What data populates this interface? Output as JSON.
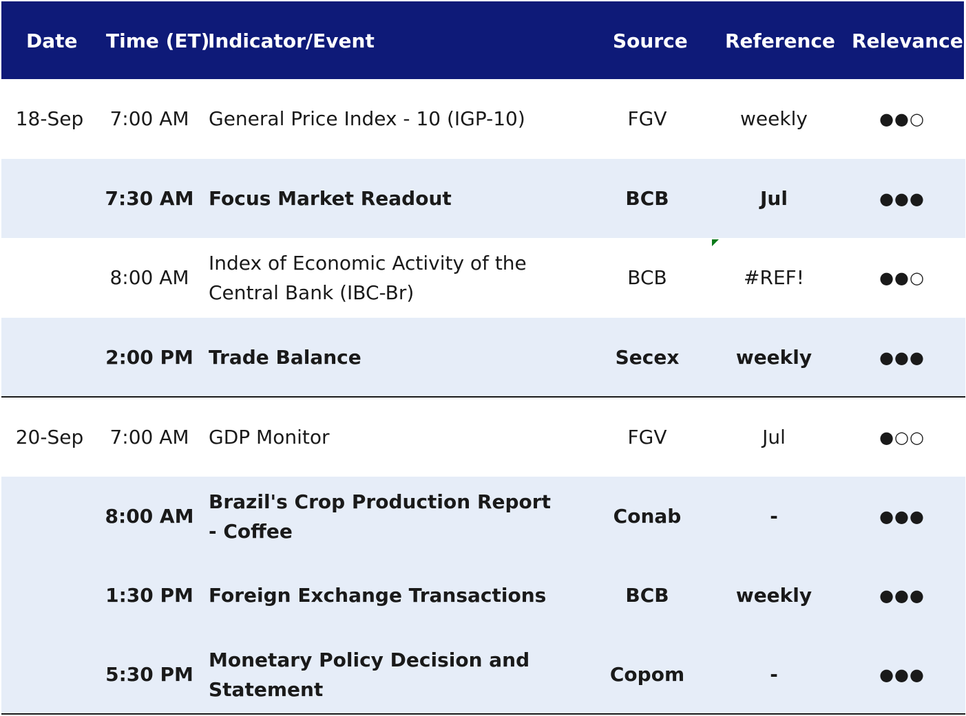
{
  "colors": {
    "header_bg": "#0e1a78",
    "header_text": "#ffffff",
    "shade_row": "#e6edf8",
    "comment_marker": "#0a7a1a"
  },
  "header": {
    "date": "Date",
    "time": "Time (ET)",
    "event": "Indicator/Event",
    "source": "Source",
    "reference": "Reference",
    "relevance": "Relevance"
  },
  "rows": [
    {
      "date": "18-Sep",
      "time": "7:00 AM",
      "event": "General Price Index - 10 (IGP-10)",
      "source": "FGV",
      "reference": "weekly",
      "relevance": "●●○",
      "bold": false
    },
    {
      "date": "",
      "time": "7:30 AM",
      "event": "Focus Market Readout",
      "source": "BCB",
      "reference": "Jul",
      "relevance": "●●●",
      "bold": true
    },
    {
      "date": "",
      "time": "8:00 AM",
      "event": "Index of Economic Activity of the Central Bank (IBC-Br)",
      "source": "BCB",
      "reference": "#REF!",
      "relevance": "●●○",
      "bold": false
    },
    {
      "date": "",
      "time": "2:00 PM",
      "event": "Trade Balance",
      "source": "Secex",
      "reference": "weekly",
      "relevance": "●●●",
      "bold": true
    },
    {
      "date": "20-Sep",
      "time": "7:00 AM",
      "event": "GDP Monitor",
      "source": "FGV",
      "reference": "Jul",
      "relevance": "●○○",
      "bold": false
    },
    {
      "date": "",
      "time": "8:00 AM",
      "event": "Brazil's Crop Production Report - Coffee",
      "source": "Conab",
      "reference": "-",
      "relevance": "●●●",
      "bold": true
    },
    {
      "date": "",
      "time": "1:30 PM",
      "event": "Foreign Exchange Transactions",
      "source": "BCB",
      "reference": "weekly",
      "relevance": "●●●",
      "bold": true
    },
    {
      "date": "",
      "time": "5:30 PM",
      "event": "Monetary Policy Decision and Statement",
      "source": "Copom",
      "reference": "-",
      "relevance": "●●●",
      "bold": true
    }
  ]
}
